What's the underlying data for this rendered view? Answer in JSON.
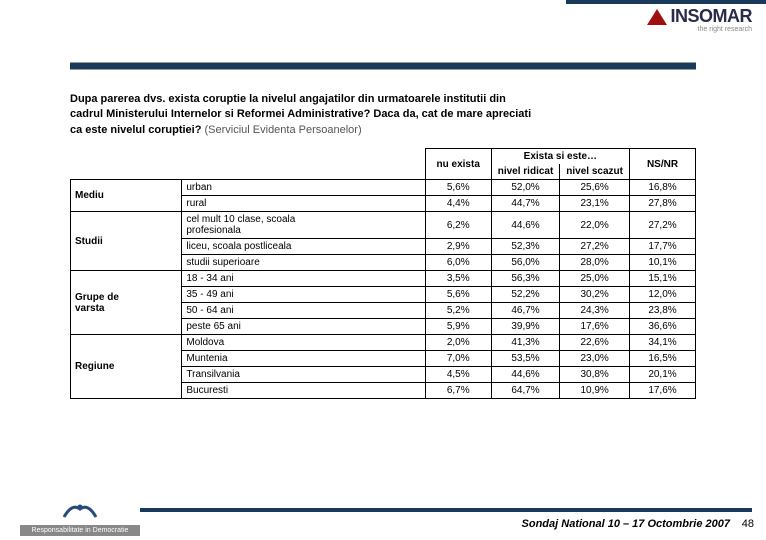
{
  "header": {
    "logo_text": "INSOMAR",
    "logo_subtitle": "the right research"
  },
  "question": {
    "main_line1": "Dupa parerea dvs. exista coruptie la nivelul angajatilor din urmatoarele institutii din",
    "main_line2": "cadrul Ministerului Internelor si Reformei Administrative? Daca da, cat de mare apreciati",
    "main_line3": "ca este nivelul coruptiei?",
    "subtitle": "(Serviciul Evidenta Persoanelor)"
  },
  "table": {
    "headers": {
      "nu_exista": "nu exista",
      "exista_parent": "Exista si este…",
      "nivel_ridicat": "nivel ridicat",
      "nivel_scazut": "nivel scazut",
      "nsnr": "NS/NR"
    },
    "groups": [
      {
        "category": "Mediu",
        "rows": [
          {
            "label": "urban",
            "values": [
              "5,6%",
              "52,0%",
              "25,6%",
              "16,8%"
            ]
          },
          {
            "label": "rural",
            "values": [
              "4,4%",
              "44,7%",
              "23,1%",
              "27,8%"
            ]
          }
        ]
      },
      {
        "category": "Studii",
        "rows": [
          {
            "label": "cel mult 10 clase, scoala profesionala",
            "wrap": true,
            "values": [
              "6,2%",
              "44,6%",
              "22,0%",
              "27,2%"
            ]
          },
          {
            "label": "liceu, scoala postliceala",
            "values": [
              "2,9%",
              "52,3%",
              "27,2%",
              "17,7%"
            ]
          },
          {
            "label": "studii superioare",
            "values": [
              "6,0%",
              "56,0%",
              "28,0%",
              "10,1%"
            ]
          }
        ]
      },
      {
        "category": "Grupe de varsta",
        "rows": [
          {
            "label": "18 - 34 ani",
            "values": [
              "3,5%",
              "56,3%",
              "25,0%",
              "15,1%"
            ]
          },
          {
            "label": "35 - 49 ani",
            "values": [
              "5,6%",
              "52,2%",
              "30,2%",
              "12,0%"
            ]
          },
          {
            "label": "50 - 64 ani",
            "values": [
              "5,2%",
              "46,7%",
              "24,3%",
              "23,8%"
            ]
          },
          {
            "label": "peste 65 ani",
            "values": [
              "5,9%",
              "39,9%",
              "17,6%",
              "36,6%"
            ]
          }
        ]
      },
      {
        "category": "Regiune",
        "rows": [
          {
            "label": "Moldova",
            "values": [
              "2,0%",
              "41,3%",
              "22,6%",
              "34,1%"
            ]
          },
          {
            "label": "Muntenia",
            "values": [
              "7,0%",
              "53,5%",
              "23,0%",
              "16,5%"
            ]
          },
          {
            "label": "Transilvania",
            "values": [
              "4,5%",
              "44,6%",
              "30,8%",
              "20,1%"
            ]
          },
          {
            "label": "Bucuresti",
            "values": [
              "6,7%",
              "64,7%",
              "10,9%",
              "17,6%"
            ]
          }
        ]
      }
    ]
  },
  "footer": {
    "org_tag": "Responsabilitate in Democratie",
    "caption": "Sondaj National 10 – 17 Octombrie 2007",
    "page": "48"
  },
  "colors": {
    "bar": "#1a3a5c",
    "logo_tri": "#a01010",
    "border": "#000000",
    "text": "#000000",
    "bg": "#ffffff",
    "footer_tag_bg": "#888888"
  }
}
